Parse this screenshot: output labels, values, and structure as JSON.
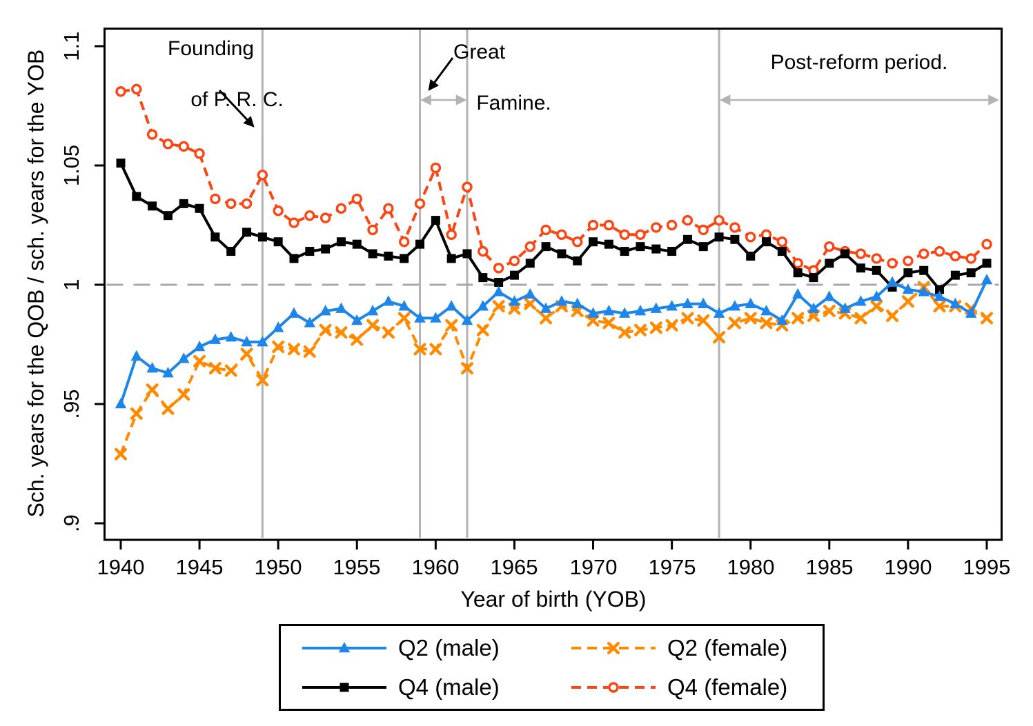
{
  "chart_data": {
    "type": "line",
    "title": "",
    "xlabel": "Year of birth (YOB)",
    "ylabel": "Sch. years for the QOB / sch. years for the YOB",
    "grid": "off",
    "legend_position": "bottom",
    "xlim": [
      1939,
      1996.5
    ],
    "ylim": [
      0.893,
      1.108
    ],
    "x_ticks": [
      1940,
      1945,
      1950,
      1955,
      1960,
      1965,
      1970,
      1975,
      1980,
      1985,
      1990,
      1995
    ],
    "y_ticks": [
      {
        "value": 0.9,
        "label": ".9"
      },
      {
        "value": 0.95,
        "label": ".95"
      },
      {
        "value": 1,
        "label": "1"
      },
      {
        "value": 1.05,
        "label": "1.05"
      },
      {
        "value": 1.1,
        "label": "1.1"
      }
    ],
    "reference_line_y": 1,
    "vertical_lines": [
      1949,
      1959,
      1962,
      1978
    ],
    "colors": {
      "q2_male": "#1E86E8",
      "q4_male": "#000000",
      "q2_female": "#FF8A00",
      "q4_female": "#FA4515",
      "event_line": "#b3b3b3",
      "reference_line": "#a8a8a8",
      "span_arrow": "#b3b3b3"
    },
    "x": [
      1940,
      1941,
      1942,
      1943,
      1944,
      1945,
      1946,
      1947,
      1948,
      1949,
      1950,
      1951,
      1952,
      1953,
      1954,
      1955,
      1956,
      1957,
      1958,
      1959,
      1960,
      1961,
      1962,
      1963,
      1964,
      1965,
      1966,
      1967,
      1968,
      1969,
      1970,
      1971,
      1972,
      1973,
      1974,
      1975,
      1976,
      1977,
      1978,
      1979,
      1980,
      1981,
      1982,
      1983,
      1984,
      1985,
      1986,
      1987,
      1988,
      1989,
      1990,
      1991,
      1992,
      1993,
      1994,
      1995
    ],
    "series": [
      {
        "name": "Q2 (male)",
        "color": "#1E86E8",
        "dash": "solid",
        "marker": "triangle",
        "values": [
          0.95,
          0.97,
          0.965,
          0.963,
          0.969,
          0.974,
          0.977,
          0.978,
          0.976,
          0.976,
          0.982,
          0.988,
          0.984,
          0.989,
          0.99,
          0.985,
          0.989,
          0.993,
          0.991,
          0.986,
          0.986,
          0.991,
          0.985,
          0.991,
          0.997,
          0.993,
          0.996,
          0.99,
          0.993,
          0.992,
          0.988,
          0.989,
          0.988,
          0.989,
          0.99,
          0.991,
          0.992,
          0.992,
          0.988,
          0.991,
          0.992,
          0.989,
          0.985,
          0.996,
          0.99,
          0.995,
          0.99,
          0.993,
          0.995,
          1.001,
          0.998,
          0.997,
          0.995,
          0.992,
          0.988,
          1.002
        ]
      },
      {
        "name": "Q4 (male)",
        "color": "#000000",
        "dash": "solid",
        "marker": "square",
        "values": [
          1.051,
          1.037,
          1.033,
          1.029,
          1.034,
          1.032,
          1.02,
          1.014,
          1.022,
          1.02,
          1.018,
          1.011,
          1.014,
          1.015,
          1.018,
          1.017,
          1.013,
          1.012,
          1.011,
          1.017,
          1.027,
          1.011,
          1.013,
          1.003,
          1.001,
          1.004,
          1.009,
          1.016,
          1.013,
          1.01,
          1.018,
          1.017,
          1.014,
          1.016,
          1.015,
          1.014,
          1.019,
          1.016,
          1.02,
          1.019,
          1.012,
          1.018,
          1.014,
          1.005,
          1.003,
          1.009,
          1.013,
          1.007,
          1.006,
          0.999,
          1.005,
          1.006,
          0.998,
          1.004,
          1.005,
          1.009
        ]
      },
      {
        "name": "Q2 (female)",
        "color": "#FF8A00",
        "dash": "dashed",
        "marker": "x",
        "values": [
          0.929,
          0.946,
          0.956,
          0.948,
          0.954,
          0.968,
          0.965,
          0.964,
          0.971,
          0.96,
          0.974,
          0.973,
          0.972,
          0.981,
          0.98,
          0.977,
          0.983,
          0.98,
          0.986,
          0.973,
          0.973,
          0.983,
          0.965,
          0.981,
          0.991,
          0.99,
          0.992,
          0.986,
          0.991,
          0.989,
          0.985,
          0.984,
          0.98,
          0.981,
          0.982,
          0.983,
          0.986,
          0.985,
          0.978,
          0.984,
          0.986,
          0.984,
          0.983,
          0.986,
          0.987,
          0.989,
          0.988,
          0.986,
          0.991,
          0.987,
          0.993,
          0.999,
          0.991,
          0.991,
          0.99,
          0.986
        ]
      },
      {
        "name": "Q4 (female)",
        "color": "#FA4515",
        "dash": "dashed",
        "marker": "circle",
        "values": [
          1.081,
          1.082,
          1.063,
          1.059,
          1.058,
          1.055,
          1.036,
          1.034,
          1.034,
          1.046,
          1.031,
          1.026,
          1.029,
          1.028,
          1.032,
          1.036,
          1.023,
          1.032,
          1.018,
          1.034,
          1.049,
          1.021,
          1.041,
          1.014,
          1.007,
          1.01,
          1.016,
          1.023,
          1.021,
          1.018,
          1.025,
          1.025,
          1.021,
          1.021,
          1.024,
          1.025,
          1.027,
          1.023,
          1.027,
          1.024,
          1.02,
          1.021,
          1.018,
          1.009,
          1.006,
          1.016,
          1.014,
          1.013,
          1.011,
          1.009,
          1.01,
          1.013,
          1.014,
          1.012,
          1.011,
          1.017
        ]
      }
    ],
    "annotations": {
      "founding": {
        "line1": "Founding",
        "line2": "of P. R. C."
      },
      "famine": {
        "line1": "Great",
        "line2": "Famine."
      },
      "post_reform": "Post-reform period.",
      "famine_span_years": [
        1959,
        1962
      ],
      "post_reform_start_year": 1978
    }
  },
  "legend": {
    "items": [
      {
        "label": "Q2 (male)",
        "series": 0
      },
      {
        "label": "Q2 (female)",
        "series": 2
      },
      {
        "label": "Q4 (male)",
        "series": 1
      },
      {
        "label": "Q4 (female)",
        "series": 3
      }
    ]
  }
}
